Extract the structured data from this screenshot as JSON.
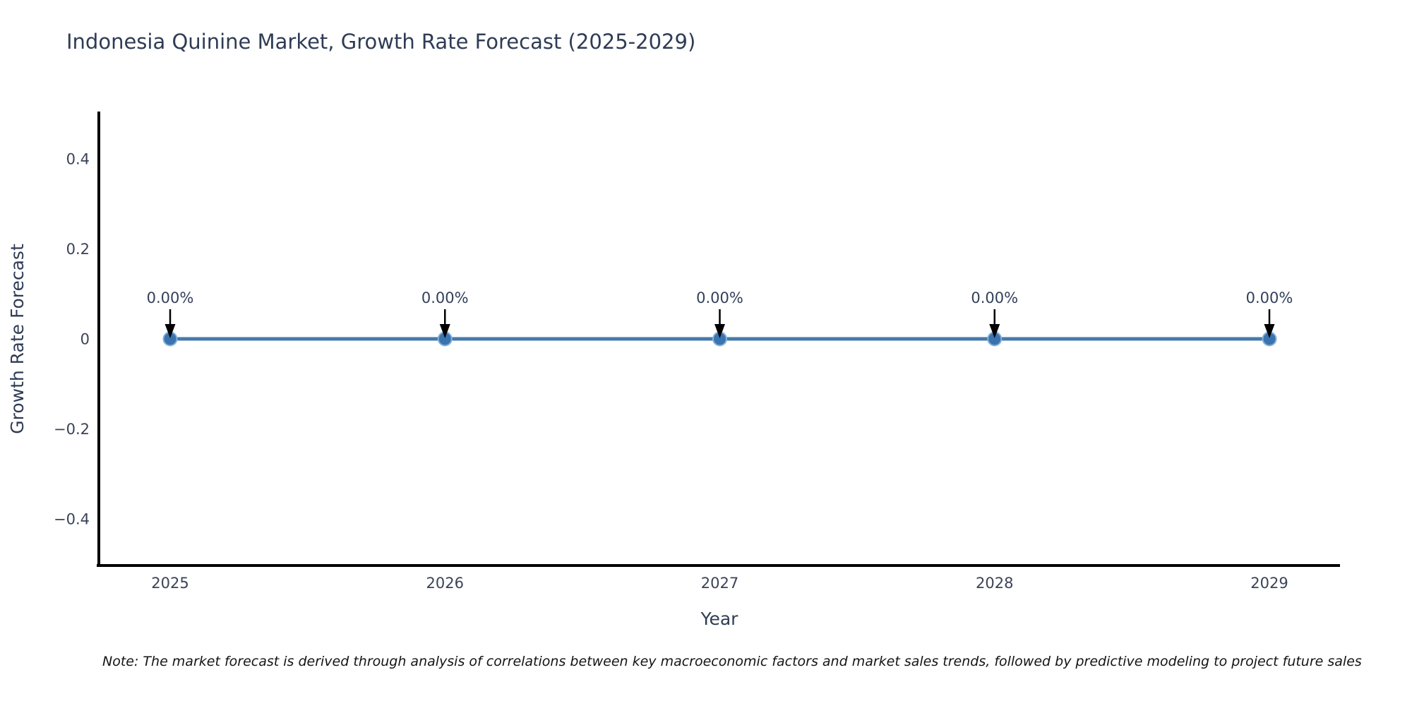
{
  "chart_data": {
    "type": "line",
    "title": "Indonesia Quinine Market, Growth Rate Forecast (2025-2029)",
    "xlabel": "Year",
    "ylabel": "Growth Rate Forecast",
    "x": [
      2025,
      2026,
      2027,
      2028,
      2029
    ],
    "series": [
      {
        "name": "Growth Rate Forecast",
        "values": [
          0,
          0,
          0,
          0,
          0
        ]
      }
    ],
    "point_labels": [
      "0.00%",
      "0.00%",
      "0.00%",
      "0.00%",
      "0.00%"
    ],
    "xtick_labels": [
      "2025",
      "2026",
      "2027",
      "2028",
      "2029"
    ],
    "yticks": [
      0.4,
      0.2,
      0,
      -0.2,
      -0.4
    ],
    "ytick_labels": [
      "0.4",
      "0.2",
      "0",
      "−0.2",
      "−0.4"
    ],
    "ylim": [
      -0.5,
      0.5
    ],
    "grid": false,
    "legend": "none",
    "colors": {
      "line": "#4679ab",
      "marker_fill": "#3a74b0",
      "marker_edge": "#86b1d8",
      "axis": "#000000",
      "arrow": "#000000",
      "tick_text": "#3a4357",
      "axis_title_text": "#2f3c55",
      "annotation_text": "#33405a",
      "title_text": "#2f3c55"
    }
  },
  "note": {
    "text": "Note: The market forecast is derived through analysis of correlations between key macroeconomic factors and market sales trends, followed by predictive modeling to project future sales"
  }
}
